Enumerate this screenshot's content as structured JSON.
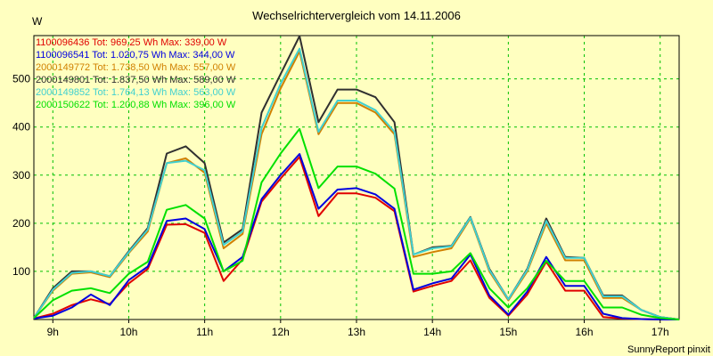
{
  "chart_data": {
    "type": "line",
    "title": "Wechselrichtervergleich vom 14.11.2006",
    "ylabel": "W",
    "footer": "SunnyReport pinxit",
    "xlim": [
      8.75,
      17.25
    ],
    "ylim": [
      0,
      590
    ],
    "y_ticks": [
      100,
      200,
      300,
      400,
      500
    ],
    "x_ticks": [
      {
        "value": 9,
        "label": "9h"
      },
      {
        "value": 10,
        "label": "10h"
      },
      {
        "value": 11,
        "label": "11h"
      },
      {
        "value": 12,
        "label": "12h"
      },
      {
        "value": 13,
        "label": "13h"
      },
      {
        "value": 14,
        "label": "14h"
      },
      {
        "value": 15,
        "label": "15h"
      },
      {
        "value": 16,
        "label": "16h"
      },
      {
        "value": 17,
        "label": "17h"
      }
    ],
    "grid": true,
    "legend_position": "top-left",
    "x": [
      8.75,
      9.0,
      9.25,
      9.5,
      9.75,
      10.0,
      10.25,
      10.5,
      10.75,
      11.0,
      11.25,
      11.5,
      11.75,
      12.0,
      12.25,
      12.5,
      12.75,
      13.0,
      13.25,
      13.5,
      13.75,
      14.0,
      14.25,
      14.5,
      14.75,
      15.0,
      15.25,
      15.5,
      15.75,
      16.0,
      16.25,
      16.5,
      16.75,
      17.0,
      17.25
    ],
    "series": [
      {
        "name": "1100096436 Tot: 969,25 Wh Max: 339,00 W",
        "color": "#e00000",
        "values": [
          2,
          12,
          30,
          42,
          32,
          75,
          105,
          197,
          198,
          180,
          80,
          125,
          245,
          293,
          338,
          215,
          262,
          262,
          253,
          225,
          58,
          70,
          80,
          123,
          45,
          8,
          52,
          120,
          60,
          60,
          5,
          2,
          1,
          0,
          0
        ]
      },
      {
        "name": "1100096541 Tot: 1.020,75 Wh Max: 344,00 W",
        "color": "#0000e0",
        "values": [
          2,
          8,
          25,
          52,
          30,
          82,
          110,
          205,
          210,
          188,
          100,
          130,
          250,
          300,
          344,
          230,
          270,
          273,
          260,
          230,
          62,
          75,
          85,
          135,
          50,
          10,
          58,
          130,
          70,
          70,
          12,
          3,
          1,
          0,
          0
        ]
      },
      {
        "name": "2000149772 Tot: 1.738,50 Wh Max: 557,00 W",
        "color": "#d08000",
        "values": [
          3,
          60,
          95,
          98,
          88,
          138,
          183,
          325,
          335,
          305,
          148,
          178,
          385,
          480,
          557,
          385,
          450,
          450,
          430,
          385,
          130,
          140,
          148,
          210,
          100,
          40,
          100,
          200,
          123,
          123,
          45,
          45,
          20,
          5,
          0
        ]
      },
      {
        "name": "2000149801 Tot: 1.837,50 Wh Max: 589,00 W",
        "color": "#303030",
        "values": [
          3,
          65,
          100,
          100,
          90,
          142,
          190,
          345,
          360,
          325,
          160,
          188,
          430,
          510,
          589,
          410,
          478,
          478,
          462,
          410,
          135,
          150,
          153,
          213,
          105,
          42,
          105,
          210,
          130,
          128,
          50,
          50,
          20,
          5,
          0
        ]
      },
      {
        "name": "2000149852 Tot: 1.764,13 Wh Max: 563,00 W",
        "color": "#40d0d0",
        "values": [
          3,
          62,
          97,
          100,
          90,
          140,
          187,
          325,
          330,
          310,
          155,
          183,
          398,
          490,
          563,
          390,
          455,
          455,
          435,
          390,
          135,
          148,
          152,
          212,
          103,
          42,
          103,
          205,
          128,
          128,
          48,
          48,
          20,
          5,
          0
        ]
      },
      {
        "name": "2000150622 Tot: 1.200,88 Wh Max: 396,00 W",
        "color": "#00e000",
        "values": [
          3,
          40,
          60,
          65,
          55,
          95,
          120,
          228,
          238,
          210,
          100,
          122,
          285,
          345,
          396,
          273,
          318,
          318,
          303,
          272,
          95,
          95,
          100,
          138,
          65,
          25,
          65,
          122,
          80,
          80,
          25,
          25,
          10,
          3,
          0
        ]
      }
    ]
  }
}
